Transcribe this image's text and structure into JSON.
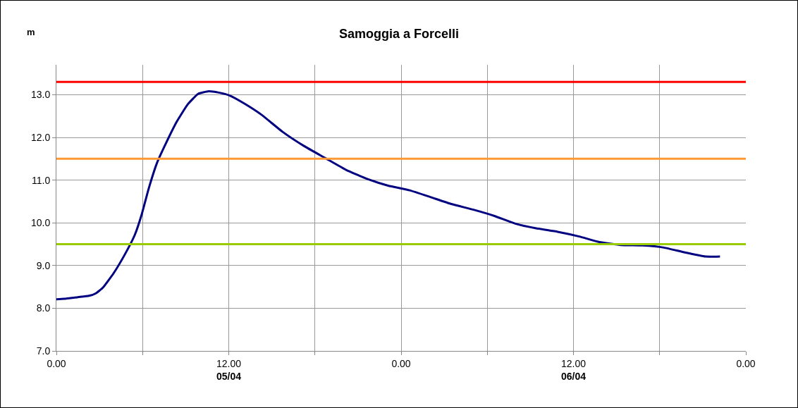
{
  "chart_data": {
    "type": "line",
    "title": "Samoggia a Forcelli",
    "ylabel": "m",
    "x": [
      "--04-05T00:00",
      "--04-05T00:32",
      "--04-05T01:30",
      "--04-05T02:16",
      "--04-05T02:45",
      "--04-05T03:14",
      "--04-05T03:59",
      "--04-05T04:43",
      "--04-05T05:27",
      "--04-05T05:56",
      "--04-05T06:26",
      "--04-05T07:00",
      "--04-05T07:40",
      "--04-05T08:23",
      "--04-05T09:08",
      "--04-05T09:52",
      "--04-05T10:36",
      "--04-05T11:18",
      "--04-05T12:04",
      "--04-05T13:03",
      "--04-05T14:17",
      "--04-05T15:45",
      "--04-05T17:14",
      "--04-05T18:42",
      "--04-05T20:10",
      "--04-05T21:38",
      "--04-05T23:06",
      "--04-06T00:36",
      "--04-06T02:04",
      "--04-06T03:30",
      "--04-06T05:00",
      "--04-06T06:30",
      "--04-06T07:57",
      "--04-06T09:24",
      "--04-06T10:54",
      "--04-06T12:24",
      "--04-06T13:48",
      "--04-06T15:18",
      "--04-06T16:48",
      "--04-06T18:18",
      "--04-06T19:42",
      "--04-06T21:12",
      "--04-06T22:12"
    ],
    "series": [
      {
        "color": "#000080",
        "values": [
          8.21,
          8.22,
          8.26,
          8.29,
          8.35,
          8.48,
          8.82,
          9.23,
          9.71,
          10.19,
          10.81,
          11.4,
          11.89,
          12.37,
          12.77,
          13.02,
          13.08,
          13.05,
          12.98,
          12.8,
          12.53,
          12.13,
          11.8,
          11.52,
          11.24,
          11.03,
          10.87,
          10.76,
          10.6,
          10.44,
          10.31,
          10.16,
          9.98,
          9.87,
          9.79,
          9.68,
          9.55,
          9.48,
          9.47,
          9.42,
          9.31,
          9.21,
          9.21
        ]
      }
    ],
    "xlim": [
      "--04-05T00:00",
      "--04-07T00:00"
    ],
    "xticks": [
      {
        "value": "--04-05T00:00",
        "label": "0.00"
      },
      {
        "value": "--04-05T06:00",
        "label": null
      },
      {
        "value": "--04-05T12:00",
        "label": "12.00\n05/04"
      },
      {
        "value": "--04-05T18:00",
        "label": null
      },
      {
        "value": "--04-06T00:00",
        "label": "0.00"
      },
      {
        "value": "--04-06T06:00",
        "label": null
      },
      {
        "value": "--04-06T12:00",
        "label": "12.00\n06/04"
      },
      {
        "value": "--04-06T18:00",
        "label": null
      },
      {
        "value": "--04-07T00:00",
        "label": "0.00"
      }
    ],
    "ylim": [
      7,
      13.7
    ],
    "yticks": [
      {
        "value": 7,
        "label": "7.0"
      },
      {
        "value": 8,
        "label": "8.0"
      },
      {
        "value": 9,
        "label": "9.0"
      },
      {
        "value": 10,
        "label": "10.0"
      },
      {
        "value": 11,
        "label": "11.0"
      },
      {
        "value": 12,
        "label": "12.0"
      },
      {
        "value": 13,
        "label": "13.0"
      }
    ],
    "ref_lines": [
      {
        "axis": "y",
        "value": 13.3,
        "color": "#ff0000"
      },
      {
        "axis": "y",
        "value": 11.5,
        "color": "#ff9933"
      },
      {
        "axis": "y",
        "value": 9.5,
        "color": "#99cc00"
      }
    ],
    "grid": true,
    "line_style": "solid",
    "marker": "none"
  }
}
